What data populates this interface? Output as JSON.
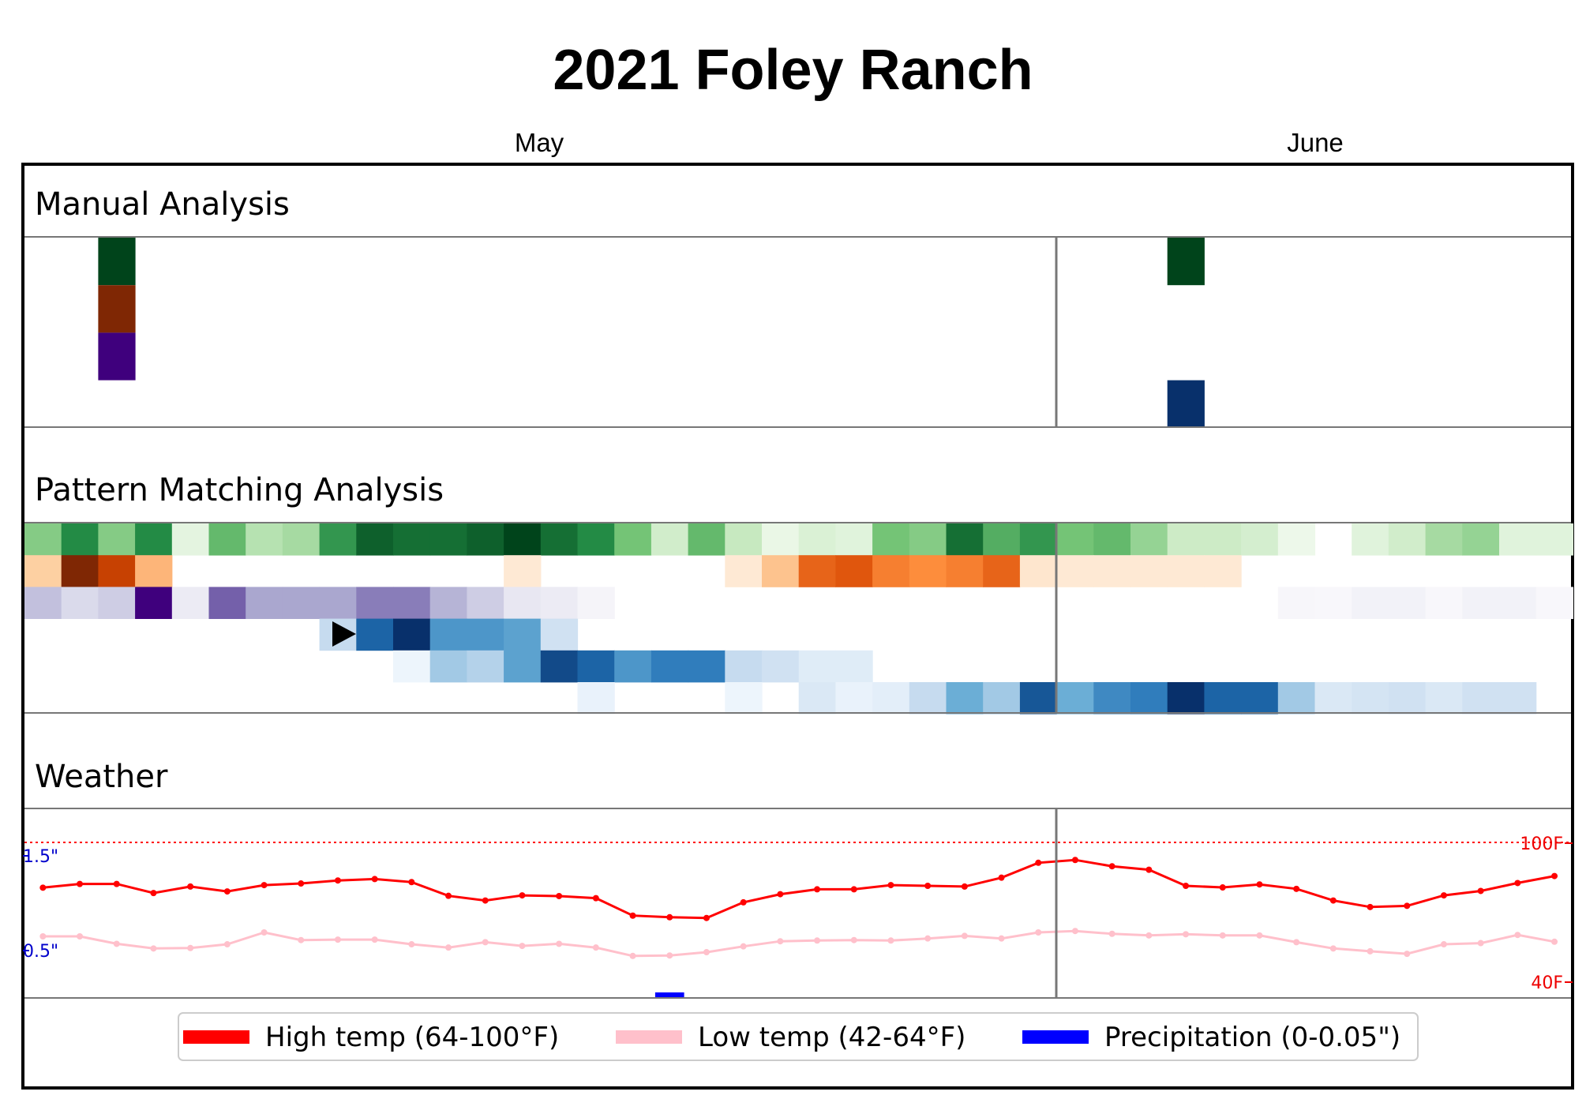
{
  "title": "2021 Foley Ranch",
  "months": [
    "May",
    "June"
  ],
  "panels": {
    "manual": "Manual Analysis",
    "pattern": "Pattern Matching Analysis",
    "weather": "Weather"
  },
  "weather_axis": {
    "precip_top": "1.5\"",
    "precip_bottom": "0.5\"",
    "temp_top": "100F",
    "temp_bottom": "40F"
  },
  "legend": [
    {
      "label": "High temp (64-100°F)",
      "color": "#ff0000"
    },
    {
      "label": "Low temp (42-64°F)",
      "color": "#ffc0cb"
    },
    {
      "label": "Precipitation (0-0.05\")",
      "color": "#0000ff"
    }
  ],
  "chart_data": {
    "type": "heatmap",
    "days": 42,
    "month_boundary_day": 28,
    "manual_analysis": [
      {
        "row": 0,
        "day": 2,
        "color": "#00441b"
      },
      {
        "row": 1,
        "day": 2,
        "color": "#7f2704"
      },
      {
        "row": 2,
        "day": 2,
        "color": "#3f007d"
      },
      {
        "row": 0,
        "day": 31,
        "color": "#00441b"
      },
      {
        "row": 3,
        "day": 31,
        "color": "#08306b"
      }
    ],
    "pattern_matching": [
      {
        "palette": "green",
        "values": [
          0.45,
          0.75,
          0.45,
          0.75,
          0.1,
          0.55,
          0.3,
          0.35,
          0.7,
          0.9,
          0.85,
          0.85,
          0.9,
          1.0,
          0.85,
          0.75,
          0.5,
          0.2,
          0.55,
          0.25,
          0.07,
          0.15,
          0.12,
          0.5,
          0.45,
          0.85,
          0.6,
          0.7,
          0.5,
          0.55,
          0.4,
          0.22,
          0.22,
          0.18,
          0.05,
          0,
          0.12,
          0.2,
          0.35,
          0.4,
          0.12,
          0.12
        ]
      },
      {
        "palette": "orange",
        "values": [
          0.25,
          1.0,
          0.8,
          0.35,
          0,
          0,
          0,
          0,
          0,
          0,
          0,
          0,
          0,
          0.08,
          0,
          0,
          0,
          0,
          0,
          0.08,
          0.3,
          0.65,
          0.7,
          0.55,
          0.5,
          0.55,
          0.65,
          0.1,
          0.08,
          0.08,
          0.08,
          0.08,
          0.08,
          0,
          0,
          0,
          0,
          0,
          0,
          0,
          0,
          0
        ]
      },
      {
        "palette": "purple",
        "values": [
          0.35,
          0.25,
          0.3,
          1.0,
          0.12,
          0.7,
          0.45,
          0.45,
          0.45,
          0.6,
          0.6,
          0.4,
          0.3,
          0.15,
          0.12,
          0.05,
          0,
          0,
          0,
          0,
          0,
          0,
          0,
          0,
          0,
          0,
          0,
          0,
          0,
          0,
          0,
          0,
          0,
          0,
          0.04,
          0.03,
          0.07,
          0.07,
          0.03,
          0.07,
          0.07,
          0.03
        ]
      },
      {
        "palette": "blue",
        "values": [
          0,
          0,
          0,
          0,
          0,
          0,
          0,
          0,
          0.25,
          0.8,
          1.0,
          0.6,
          0.6,
          0.55,
          0.2,
          0,
          0,
          0,
          0,
          0,
          0,
          0,
          0,
          0,
          0,
          0,
          0,
          0,
          0,
          0,
          0,
          0,
          0,
          0,
          0,
          0,
          0,
          0,
          0,
          0,
          0,
          0
        ]
      },
      {
        "palette": "blue",
        "values": [
          0,
          0,
          0,
          0,
          0,
          0,
          0,
          0,
          0,
          0,
          0.05,
          0.35,
          0.3,
          0.55,
          0.9,
          0.8,
          0.6,
          0.7,
          0.7,
          0.25,
          0.2,
          0.12,
          0.12,
          0,
          0,
          0,
          0,
          0,
          0,
          0,
          0,
          0,
          0,
          0,
          0,
          0,
          0,
          0,
          0,
          0,
          0,
          0
        ]
      },
      {
        "palette": "blue",
        "values": [
          0,
          0,
          0,
          0,
          0,
          0,
          0,
          0,
          0,
          0,
          0,
          0,
          0,
          0,
          0,
          0.07,
          0,
          0,
          0,
          0.05,
          0,
          0.15,
          0.07,
          0.1,
          0.25,
          0.5,
          0.35,
          0.85,
          0.5,
          0.65,
          0.7,
          1.0,
          0.8,
          0.8,
          0.35,
          0.15,
          0.18,
          0.2,
          0.15,
          0.2,
          0.2,
          0
        ]
      }
    ],
    "high_temp_f": [
      80.9,
      82.5,
      82.5,
      78.6,
      81.4,
      79.3,
      82.0,
      82.7,
      84.0,
      84.6,
      83.3,
      77.4,
      75.4,
      77.6,
      77.3,
      76.4,
      68.9,
      68.2,
      67.9,
      74.6,
      78.1,
      80.2,
      80.2,
      82.0,
      81.7,
      81.4,
      85.2,
      91.6,
      92.8,
      90.1,
      88.6,
      81.7,
      81.0,
      82.3,
      80.4,
      75.4,
      72.6,
      73.1,
      77.6,
      79.5,
      82.9,
      85.9
    ],
    "low_temp_f": [
      60.0,
      60.0,
      56.8,
      54.8,
      55.0,
      56.6,
      61.7,
      58.4,
      58.6,
      58.6,
      56.6,
      55.2,
      57.5,
      55.9,
      56.8,
      55.2,
      51.6,
      51.8,
      53.2,
      55.7,
      57.9,
      58.2,
      58.4,
      58.2,
      59.1,
      60.2,
      59.1,
      61.7,
      62.3,
      61.1,
      60.4,
      60.9,
      60.4,
      60.4,
      57.5,
      54.8,
      53.6,
      52.5,
      56.6,
      57.1,
      60.6,
      57.7
    ],
    "precip_in": [
      0,
      0,
      0,
      0,
      0,
      0,
      0,
      0,
      0,
      0,
      0,
      0,
      0,
      0,
      0,
      0,
      0,
      0.05,
      0,
      0,
      0,
      0,
      0,
      0,
      0,
      0,
      0,
      0,
      0,
      0,
      0,
      0,
      0,
      0,
      0,
      0,
      0,
      0,
      0,
      0,
      0,
      0
    ],
    "temp_range": [
      40,
      100
    ]
  }
}
